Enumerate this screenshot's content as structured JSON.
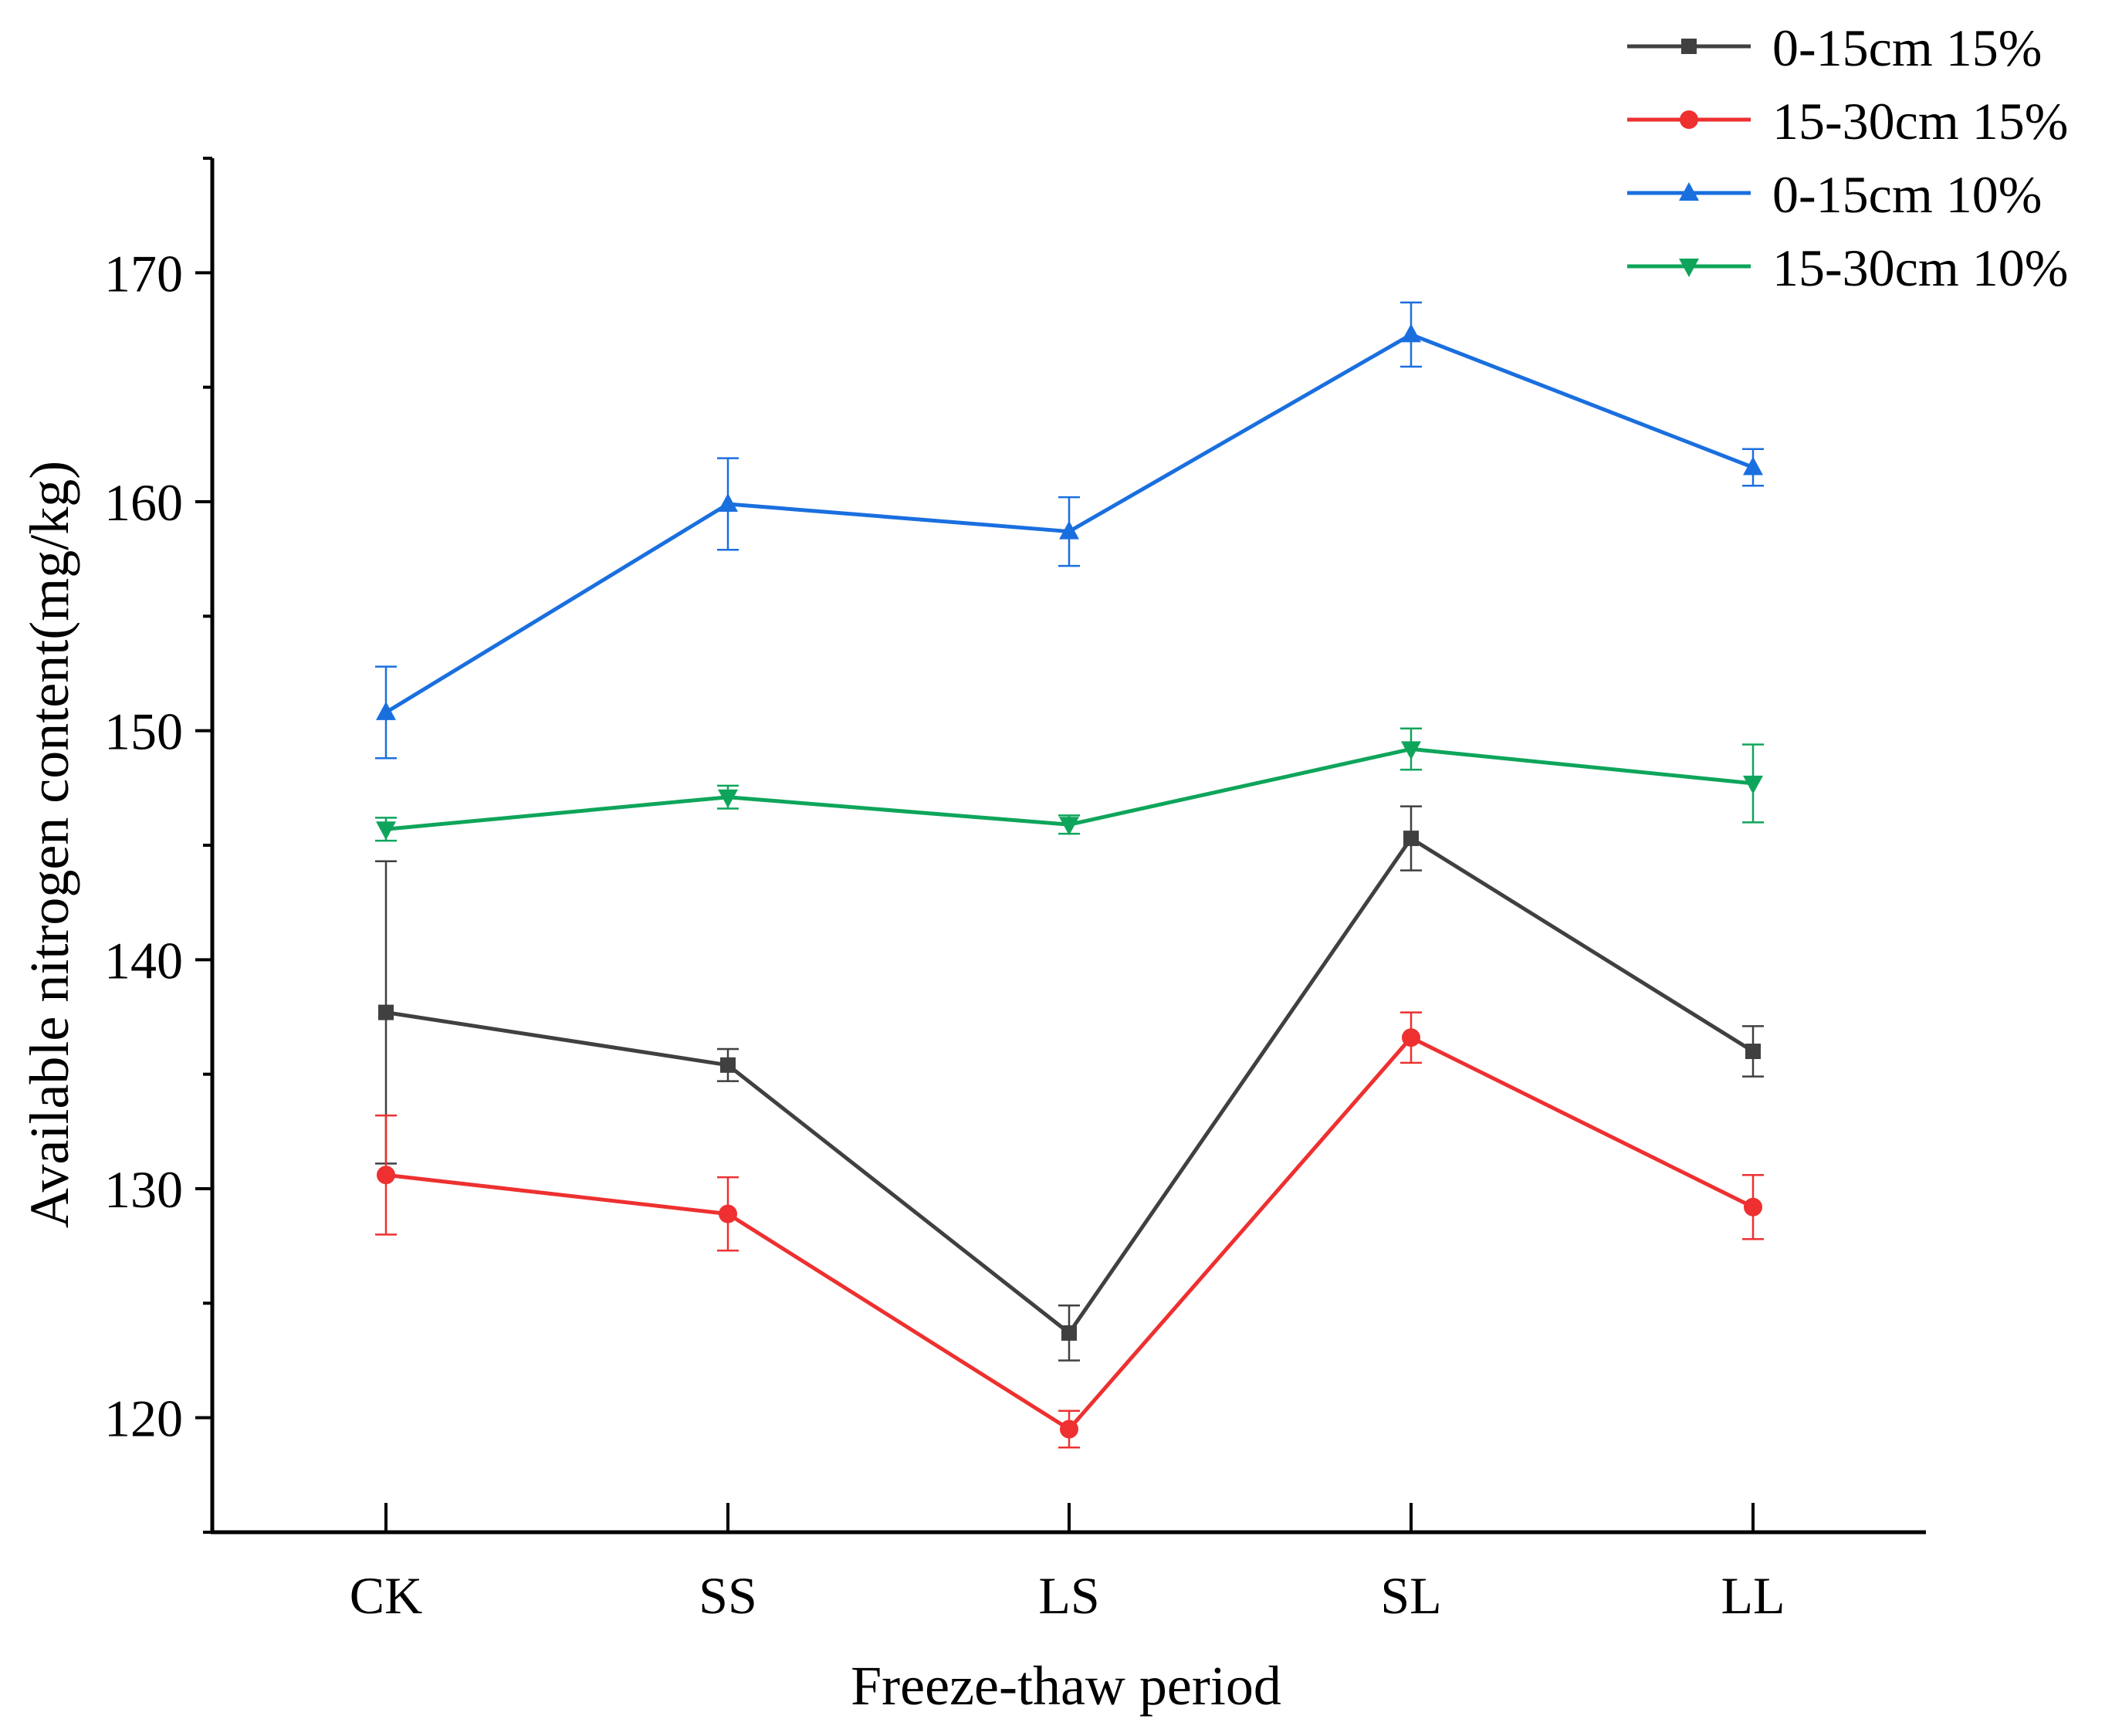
{
  "chart_data": {
    "type": "line",
    "title": "",
    "xlabel": "Freeze-thaw period",
    "ylabel": "Available nitrogen content(mg/kg)",
    "categories": [
      "CK",
      "SS",
      "LS",
      "SL",
      "LL"
    ],
    "ylim": [
      115,
      175
    ],
    "yticks": [
      120,
      130,
      140,
      150,
      160,
      170
    ],
    "grid": false,
    "legend_position": "top-right",
    "series": [
      {
        "name": "0-15cm 15%",
        "color": "#404040",
        "marker": "square",
        "values": [
          137.7,
          135.4,
          123.7,
          145.3,
          136.0
        ],
        "errors": [
          6.6,
          0.7,
          1.2,
          1.4,
          1.1
        ]
      },
      {
        "name": "15-30cm 15%",
        "color": "#ee3030",
        "marker": "circle",
        "values": [
          130.6,
          128.9,
          119.5,
          136.6,
          129.2
        ],
        "errors": [
          2.6,
          1.6,
          0.8,
          1.1,
          1.4
        ]
      },
      {
        "name": "0-15cm 10%",
        "color": "#1a6fdf",
        "marker": "triangle-up",
        "values": [
          150.8,
          159.9,
          158.7,
          167.3,
          161.5
        ],
        "errors": [
          2.0,
          2.0,
          1.5,
          1.4,
          0.8
        ]
      },
      {
        "name": "15-30cm 10%",
        "color": "#0ea55b",
        "marker": "triangle-down",
        "values": [
          145.7,
          147.1,
          145.9,
          149.2,
          147.7
        ],
        "errors": [
          0.5,
          0.5,
          0.4,
          0.9,
          1.7
        ]
      }
    ]
  }
}
